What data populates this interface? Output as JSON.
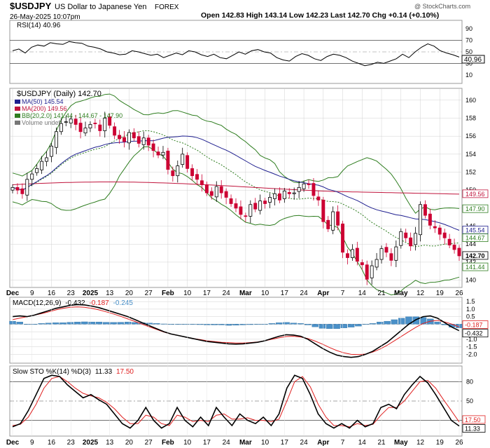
{
  "header": {
    "symbol": "$USDJPY",
    "description": "US Dollar to Japanese Yen",
    "exchange": "FOREX",
    "timestamp": "26-May-2025 10:07pm",
    "ohlc": "Open 142.83  High 143.14  Low 142.23  Last 142.70  Chg +0.14 (+0.10%)",
    "copyright": "@ StockCharts.com"
  },
  "rsi_panel": {
    "label": "RSI(14) 40.96",
    "ticks": [
      "90",
      "70",
      "50",
      "30",
      "10"
    ],
    "value_tag": "40.96"
  },
  "price_panel": {
    "label": "$USDJPY (Daily) 142.70",
    "legend": [
      {
        "text": "MA(50) 145.54",
        "color": "#1f1f8f"
      },
      {
        "text": "MA(200) 149.56",
        "color": "#c0143c"
      },
      {
        "text": "BB(20,2.0) 141.44 - 144.67 - 147.90",
        "color": "#2e7d1f"
      },
      {
        "text": "Volume undef",
        "color": "#777777"
      }
    ],
    "ticks": [
      "160",
      "158",
      "156",
      "154",
      "152",
      "150",
      "148",
      "146",
      "144",
      "142",
      "140"
    ],
    "value_tags": [
      {
        "text": "149.56",
        "y": 149.56,
        "color": "#c0143c"
      },
      {
        "text": "147.90",
        "y": 147.9,
        "color": "#2e7d1f"
      },
      {
        "text": "145.54",
        "y": 145.54,
        "color": "#1f1f8f"
      },
      {
        "text": "144.67",
        "y": 144.67,
        "color": "#2e7d1f"
      },
      {
        "text": "142.70",
        "y": 142.7,
        "color": "#000000"
      },
      {
        "text": "141.44",
        "y": 141.44,
        "color": "#2e7d1f"
      }
    ]
  },
  "macd_panel": {
    "label_prefix": "MACD(12,26,9)",
    "macd_value": "-0.432",
    "signal_value": "-0.187",
    "hist_value": "-0.245",
    "ticks": [
      "1.5",
      "1.0",
      "0.5",
      "0.0",
      "-0.5",
      "-1.0",
      "-1.5",
      "-2.0"
    ],
    "value_tags": [
      "-0.187",
      "-0.432"
    ]
  },
  "sto_panel": {
    "label_prefix": "Slow STO %K(14) %D(3)",
    "k_value": "11.33",
    "d_value": "17.50",
    "ticks": [
      "80",
      "50",
      "20"
    ],
    "value_tags": [
      "17.50",
      "11.33"
    ]
  },
  "x_axis": [
    "Dec",
    "9",
    "16",
    "23",
    "2025",
    "13",
    "20",
    "27",
    "Feb",
    "10",
    "17",
    "24",
    "Mar",
    "10",
    "17",
    "24",
    "Apr",
    "7",
    "14",
    "21",
    "May",
    "12",
    "19",
    "26"
  ],
  "colors": {
    "up": "#000000",
    "down": "#cc0033",
    "ma50": "#1f1f8f",
    "ma200": "#c0143c",
    "bb": "#2e7d1f",
    "hist": "#4a90c8",
    "grid": "#d0d0d0"
  },
  "chart_data": [
    {
      "type": "line",
      "name": "RSI(14)",
      "y": [
        52,
        55,
        48,
        58,
        62,
        60,
        66,
        64,
        63,
        68,
        66,
        65,
        60,
        58,
        55,
        50,
        48,
        45,
        46,
        52,
        50,
        47,
        44,
        46,
        40,
        44,
        48,
        45,
        52,
        50,
        45,
        42,
        46,
        40,
        38,
        44,
        50,
        46,
        52,
        54,
        50,
        48,
        40,
        36,
        34,
        42,
        47,
        44,
        38,
        35,
        42,
        46,
        44,
        40,
        34,
        30,
        26,
        28,
        32,
        30,
        34,
        38,
        46,
        40,
        50,
        58,
        64,
        60,
        52,
        48,
        45,
        40.96
      ],
      "ylim": [
        0,
        100
      ],
      "ticks": [
        90,
        70,
        50,
        30,
        10
      ]
    },
    {
      "type": "candlestick",
      "name": "$USDJPY (Daily)",
      "close": [
        150.3,
        150.0,
        149.6,
        151.2,
        151.8,
        152.4,
        153.2,
        153.6,
        154.9,
        156.5,
        157.4,
        157.6,
        157.9,
        157.3,
        156.5,
        156.9,
        157.3,
        157.4,
        156.6,
        158.0,
        157.2,
        156.1,
        155.7,
        155.4,
        156.4,
        155.8,
        155.2,
        155.8,
        155.0,
        154.4,
        153.9,
        154.2,
        152.3,
        151.6,
        152.7,
        154.0,
        152.4,
        151.6,
        151.2,
        150.6,
        149.7,
        149.4,
        150.4,
        149.7,
        149.2,
        148.5,
        148.0,
        147.3,
        147.1,
        148.4,
        147.9,
        148.8,
        148.5,
        149.2,
        149.6,
        148.9,
        149.9,
        149.6,
        149.7,
        150.3,
        150.7,
        150.6,
        149.4,
        148.9,
        146.5,
        145.7,
        147.6,
        146.1,
        143.1,
        142.5,
        143.4,
        142.1,
        141.7,
        140.1,
        141.6,
        142.3,
        143.5,
        143.1,
        142.2,
        143.7,
        145.4,
        144.7,
        143.8,
        145.2,
        148.4,
        147.2,
        146.1,
        145.8,
        145.1,
        144.7,
        143.9,
        143.4,
        142.7
      ],
      "ylim": [
        139.5,
        161
      ],
      "ma50_end": 145.54,
      "ma200_end": 149.56,
      "bb_upper_end": 147.9,
      "bb_mid_end": 144.67,
      "bb_lower_end": 141.44
    },
    {
      "type": "line",
      "name": "MACD(12,26,9)",
      "macd": [
        0.5,
        0.55,
        0.5,
        0.6,
        0.75,
        0.9,
        1.05,
        1.15,
        1.25,
        1.3,
        1.28,
        1.2,
        1.1,
        0.95,
        0.8,
        0.65,
        0.5,
        0.3,
        0.1,
        -0.1,
        -0.3,
        -0.5,
        -0.65,
        -0.75,
        -0.85,
        -0.95,
        -1.05,
        -1.15,
        -1.2,
        -1.25,
        -1.3,
        -1.32,
        -1.3,
        -1.25,
        -1.2,
        -1.1,
        -0.95,
        -0.8,
        -0.7,
        -0.72,
        -0.8,
        -1.0,
        -1.3,
        -1.6,
        -1.85,
        -2.05,
        -2.15,
        -2.2,
        -2.15,
        -2.0,
        -1.8,
        -1.5,
        -1.2,
        -0.8,
        -0.4,
        0.0,
        0.3,
        0.5,
        0.55,
        0.4,
        0.1,
        -0.2,
        -0.432
      ],
      "signal": [
        0.3,
        0.4,
        0.5,
        0.6,
        0.7,
        0.82,
        0.95,
        1.05,
        1.12,
        1.15,
        1.12,
        1.05,
        0.95,
        0.82,
        0.68,
        0.52,
        0.35,
        0.18,
        0.0,
        -0.18,
        -0.35,
        -0.52,
        -0.65,
        -0.75,
        -0.85,
        -0.95,
        -1.02,
        -1.1,
        -1.15,
        -1.2,
        -1.22,
        -1.25,
        -1.25,
        -1.22,
        -1.18,
        -1.1,
        -1.0,
        -0.9,
        -0.82,
        -0.8,
        -0.85,
        -0.95,
        -1.12,
        -1.32,
        -1.55,
        -1.75,
        -1.9,
        -2.0,
        -2.02,
        -1.98,
        -1.85,
        -1.65,
        -1.4,
        -1.1,
        -0.8,
        -0.5,
        -0.2,
        0.05,
        0.2,
        0.25,
        0.15,
        0.0,
        -0.187
      ],
      "ylim": [
        -2.4,
        1.6
      ]
    },
    {
      "type": "line",
      "name": "Slow STO %K(14) %D(3)",
      "k": [
        10,
        15,
        35,
        60,
        85,
        90,
        88,
        75,
        65,
        55,
        60,
        52,
        45,
        30,
        15,
        8,
        20,
        40,
        20,
        8,
        15,
        40,
        20,
        10,
        25,
        12,
        40,
        25,
        12,
        30,
        20,
        15,
        25,
        12,
        30,
        70,
        90,
        85,
        60,
        30,
        15,
        8,
        15,
        8,
        20,
        10,
        15,
        40,
        45,
        38,
        60,
        75,
        88,
        78,
        60,
        40,
        20,
        11.33
      ],
      "d": [
        12,
        14,
        25,
        45,
        70,
        85,
        88,
        80,
        70,
        62,
        58,
        55,
        48,
        38,
        25,
        15,
        15,
        28,
        25,
        15,
        12,
        28,
        25,
        18,
        20,
        18,
        28,
        30,
        22,
        22,
        24,
        20,
        20,
        18,
        22,
        50,
        80,
        88,
        72,
        45,
        25,
        12,
        12,
        10,
        15,
        12,
        14,
        28,
        40,
        40,
        50,
        65,
        80,
        82,
        70,
        52,
        35,
        17.5
      ],
      "ylim": [
        0,
        100
      ],
      "ticks": [
        80,
        50,
        20
      ]
    }
  ]
}
